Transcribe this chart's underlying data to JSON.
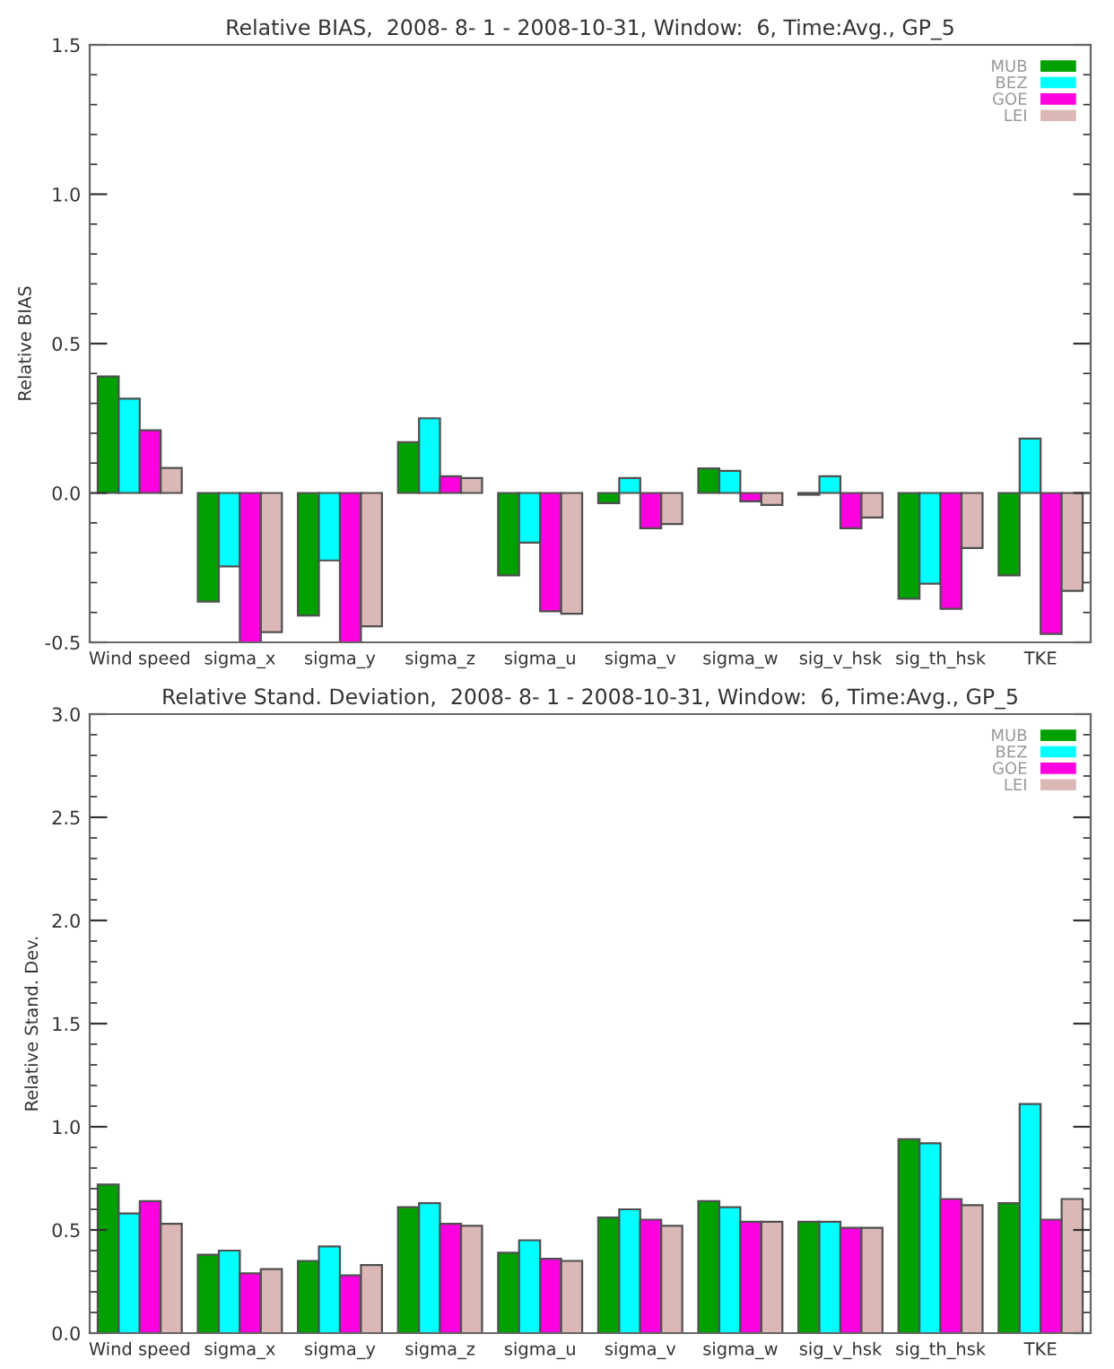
{
  "chart_data": [
    {
      "type": "bar",
      "title": "Relative BIAS,  2008- 8- 1 - 2008-10-31, Window:  6, Time:Avg., GP_5",
      "ylabel": "Relative BIAS",
      "categories": [
        "Wind speed",
        "sigma_x",
        "sigma_y",
        "sigma_z",
        "sigma_u",
        "sigma_v",
        "sigma_w",
        "sig_v_hsk",
        "sig_th_hsk",
        "TKE"
      ],
      "series": [
        {
          "name": "MUB",
          "color": "#00a000",
          "values": [
            0.39,
            -0.364,
            -0.41,
            0.17,
            -0.276,
            -0.034,
            0.082,
            -0.006,
            -0.354,
            -0.276
          ]
        },
        {
          "name": "BEZ",
          "color": "#00ffff",
          "values": [
            0.316,
            -0.246,
            -0.226,
            0.25,
            -0.166,
            0.05,
            0.074,
            0.056,
            -0.304,
            0.182
          ]
        },
        {
          "name": "GOE",
          "color": "#ff00e0",
          "values": [
            0.21,
            -0.5,
            -0.5,
            0.056,
            -0.396,
            -0.118,
            -0.028,
            -0.118,
            -0.388,
            -0.472
          ]
        },
        {
          "name": "LEI",
          "color": "#dbb8b5",
          "values": [
            0.084,
            -0.466,
            -0.446,
            0.05,
            -0.404,
            -0.104,
            -0.04,
            -0.082,
            -0.184,
            -0.328
          ]
        }
      ],
      "ylim": [
        -0.5,
        1.5
      ],
      "yticks": [
        {
          "value": -0.5,
          "label": "-0.5"
        },
        {
          "value": 0,
          "label": "0.0"
        },
        0.5,
        {
          "value": 1,
          "label": "1.0"
        },
        1.5
      ],
      "legend": "top right",
      "grid": false
    },
    {
      "type": "bar",
      "title": "Relative Stand. Deviation,  2008- 8- 1 - 2008-10-31, Window:  6, Time:Avg., GP_5",
      "ylabel": "Relative Stand. Dev.",
      "categories": [
        "Wind speed",
        "sigma_x",
        "sigma_y",
        "sigma_z",
        "sigma_u",
        "sigma_v",
        "sigma_w",
        "sig_v_hsk",
        "sig_th_hsk",
        "TKE"
      ],
      "series": [
        {
          "name": "MUB",
          "color": "#00a000",
          "values": [
            0.72,
            0.38,
            0.35,
            0.61,
            0.39,
            0.56,
            0.64,
            0.54,
            0.94,
            0.63
          ]
        },
        {
          "name": "BEZ",
          "color": "#00ffff",
          "values": [
            0.58,
            0.4,
            0.42,
            0.63,
            0.45,
            0.6,
            0.61,
            0.54,
            0.92,
            1.11
          ]
        },
        {
          "name": "GOE",
          "color": "#ff00e0",
          "values": [
            0.64,
            0.29,
            0.28,
            0.53,
            0.36,
            0.55,
            0.54,
            0.51,
            0.65,
            0.55
          ]
        },
        {
          "name": "LEI",
          "color": "#dbb8b5",
          "values": [
            0.53,
            0.31,
            0.33,
            0.52,
            0.35,
            0.52,
            0.54,
            0.51,
            0.62,
            0.65
          ]
        }
      ],
      "ylim": [
        0,
        3
      ],
      "yticks": [
        {
          "value": 0,
          "label": "0.0"
        },
        0.5,
        {
          "value": 1,
          "label": "1.0"
        },
        1.5,
        {
          "value": 2,
          "label": "2.0"
        },
        2.5,
        {
          "value": 3,
          "label": "3.0"
        }
      ],
      "legend": "top right",
      "grid": false
    }
  ]
}
